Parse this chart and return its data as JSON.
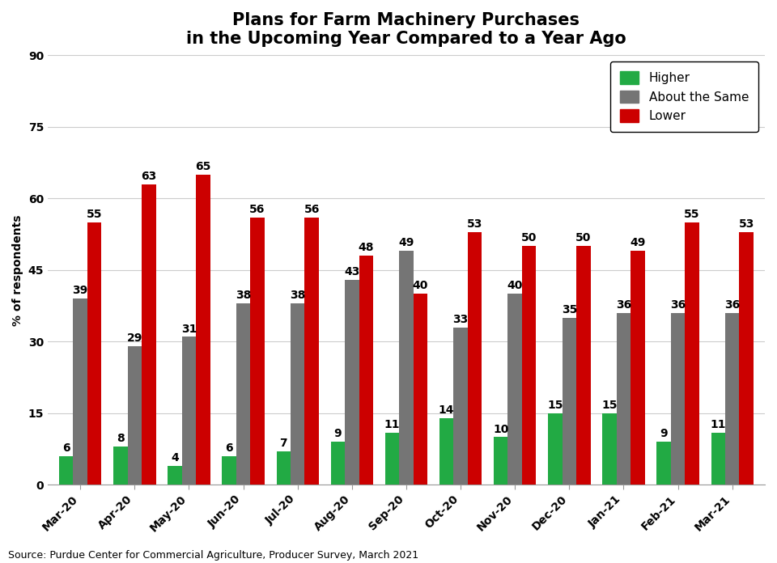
{
  "title": "Plans for Farm Machinery Purchases\nin the Upcoming Year Compared to a Year Ago",
  "ylabel": "% of respondents",
  "source": "Source: Purdue Center for Commercial Agriculture, Producer Survey, March 2021",
  "categories": [
    "Mar-20",
    "Apr-20",
    "May-20",
    "Jun-20",
    "Jul-20",
    "Aug-20",
    "Sep-20",
    "Oct-20",
    "Nov-20",
    "Dec-20",
    "Jan-21",
    "Feb-21",
    "Mar-21"
  ],
  "higher": [
    6,
    8,
    4,
    6,
    7,
    9,
    11,
    14,
    10,
    15,
    15,
    9,
    11
  ],
  "about_same": [
    39,
    29,
    31,
    38,
    38,
    43,
    49,
    33,
    40,
    35,
    36,
    36,
    36
  ],
  "lower": [
    55,
    63,
    65,
    56,
    56,
    48,
    40,
    53,
    50,
    50,
    49,
    55,
    53
  ],
  "color_higher": "#22AA44",
  "color_same": "#757575",
  "color_lower": "#CC0000",
  "ylim": [
    0,
    90
  ],
  "yticks": [
    0,
    15,
    30,
    45,
    60,
    75,
    90
  ],
  "bar_width": 0.26,
  "legend_labels": [
    "Higher",
    "About the Same",
    "Lower"
  ],
  "title_fontsize": 15,
  "label_fontsize": 10,
  "tick_fontsize": 10,
  "bar_label_fontsize": 10,
  "source_fontsize": 9,
  "legend_fontsize": 11
}
